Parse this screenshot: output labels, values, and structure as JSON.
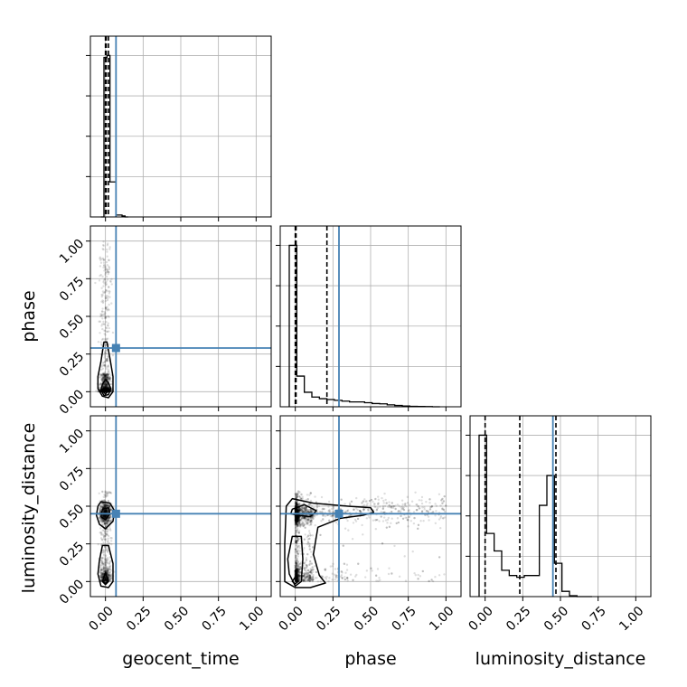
{
  "chart_data": {
    "type": "corner",
    "parameters": [
      "geocent_time",
      "phase",
      "luminosity_distance"
    ],
    "axis_labels": {
      "x": [
        "geocent_time",
        "phase",
        "luminosity_distance"
      ],
      "y": [
        "phase",
        "luminosity_distance"
      ]
    },
    "range": [
      -0.1,
      1.1
    ],
    "ticks": [
      0.0,
      0.25,
      0.5,
      0.75,
      1.0
    ],
    "tick_labels": [
      "0.00",
      "0.25",
      "0.50",
      "0.75",
      "1.00"
    ],
    "grid": true,
    "truths": [
      0.07,
      0.29,
      0.45
    ],
    "truth_color": "#4682b4",
    "hist_color": "#000000",
    "histograms": [
      {
        "parameter": "geocent_time",
        "bin_edges": [
          -0.03,
          -0.01,
          0.01,
          0.03,
          0.05,
          0.07,
          0.09,
          0.11,
          0.13,
          0.15
        ],
        "counts": [
          0.0,
          0.82,
          0.83,
          0.18,
          0.18,
          0.01,
          0.01,
          0.005,
          0.0
        ],
        "quantiles": [
          0.0,
          0.005,
          0.02
        ]
      },
      {
        "parameter": "phase",
        "bin_edges": [
          -0.04,
          0.01,
          0.06,
          0.11,
          0.16,
          0.21,
          0.26,
          0.31,
          0.36,
          0.41,
          0.46,
          0.51,
          0.56,
          0.61,
          0.66,
          0.71,
          0.76,
          0.81,
          0.86,
          0.91,
          0.96
        ],
        "counts": [
          1.0,
          0.19,
          0.09,
          0.06,
          0.05,
          0.045,
          0.04,
          0.035,
          0.03,
          0.03,
          0.025,
          0.02,
          0.018,
          0.012,
          0.008,
          0.005,
          0.003,
          0.002,
          0.001,
          0.0
        ],
        "quantiles": [
          0.0,
          0.005,
          0.21
        ]
      },
      {
        "parameter": "luminosity_distance",
        "bin_edges": [
          -0.04,
          0.01,
          0.06,
          0.11,
          0.16,
          0.21,
          0.26,
          0.31,
          0.36,
          0.41,
          0.46,
          0.51,
          0.56,
          0.61,
          0.66,
          0.71
        ],
        "counts": [
          0.92,
          0.36,
          0.26,
          0.15,
          0.12,
          0.11,
          0.12,
          0.12,
          0.52,
          0.69,
          0.19,
          0.03,
          0.005,
          0.0,
          0.0
        ],
        "quantiles": [
          0.0,
          0.23,
          0.47
        ]
      }
    ],
    "scatter_panels": [
      {
        "x_parameter": "geocent_time",
        "y_parameter": "phase",
        "sample_count": 1200,
        "density_contours": [
          [
            [
              -0.05,
              0.02
            ],
            [
              -0.02,
              -0.03
            ],
            [
              0.02,
              -0.04
            ],
            [
              0.05,
              0.0
            ],
            [
              0.05,
              0.1
            ],
            [
              0.03,
              0.22
            ],
            [
              0.01,
              0.33
            ],
            [
              -0.01,
              0.33
            ],
            [
              -0.03,
              0.2
            ],
            [
              -0.05,
              0.1
            ]
          ],
          [
            [
              -0.03,
              0.01
            ],
            [
              -0.01,
              -0.025
            ],
            [
              0.02,
              -0.02
            ],
            [
              0.035,
              0.02
            ],
            [
              0.02,
              0.06
            ],
            [
              0.0,
              0.08
            ],
            [
              -0.02,
              0.05
            ]
          ],
          [
            [
              -0.015,
              0.0
            ],
            [
              0.0,
              -0.015
            ],
            [
              0.015,
              0.0
            ],
            [
              0.0,
              0.015
            ]
          ]
        ],
        "truth_point": [
          0.07,
          0.29
        ]
      },
      {
        "x_parameter": "geocent_time",
        "y_parameter": "luminosity_distance",
        "sample_count": 1200,
        "density_contours": [
          [
            [
              -0.05,
              0.5
            ],
            [
              -0.03,
              0.53
            ],
            [
              0.03,
              0.52
            ],
            [
              0.06,
              0.47
            ],
            [
              0.05,
              0.4
            ],
            [
              0.0,
              0.35
            ],
            [
              -0.04,
              0.38
            ],
            [
              -0.06,
              0.44
            ]
          ],
          [
            [
              -0.02,
              0.48
            ],
            [
              0.02,
              0.49
            ],
            [
              0.03,
              0.45
            ],
            [
              0.0,
              0.41
            ],
            [
              -0.03,
              0.43
            ]
          ],
          [
            [
              -0.05,
              0.05
            ],
            [
              -0.03,
              -0.03
            ],
            [
              0.02,
              -0.04
            ],
            [
              0.05,
              0.0
            ],
            [
              0.05,
              0.12
            ],
            [
              0.02,
              0.24
            ],
            [
              -0.02,
              0.24
            ],
            [
              -0.04,
              0.14
            ]
          ],
          [
            [
              -0.02,
              0.0
            ],
            [
              0.0,
              -0.02
            ],
            [
              0.02,
              0.0
            ],
            [
              0.0,
              0.06
            ]
          ],
          [
            [
              -0.015,
              0.0
            ],
            [
              0.0,
              -0.012
            ],
            [
              0.015,
              0.0
            ],
            [
              0.0,
              0.012
            ]
          ]
        ],
        "truth_point": [
          0.07,
          0.45
        ]
      },
      {
        "x_parameter": "phase",
        "y_parameter": "luminosity_distance",
        "sample_count": 2500,
        "density_contours": [
          [
            [
              -0.06,
              0.5
            ],
            [
              -0.02,
              0.55
            ],
            [
              0.12,
              0.52
            ],
            [
              0.35,
              0.5
            ],
            [
              0.5,
              0.49
            ],
            [
              0.52,
              0.46
            ],
            [
              0.45,
              0.44
            ],
            [
              0.3,
              0.42
            ],
            [
              0.15,
              0.36
            ],
            [
              0.12,
              0.18
            ],
            [
              0.16,
              0.04
            ],
            [
              0.2,
              -0.01
            ],
            [
              0.1,
              -0.04
            ],
            [
              0.0,
              -0.04
            ],
            [
              -0.07,
              0.0
            ],
            [
              -0.07,
              0.25
            ]
          ],
          [
            [
              -0.02,
              0.48
            ],
            [
              0.06,
              0.51
            ],
            [
              0.14,
              0.47
            ],
            [
              0.1,
              0.43
            ],
            [
              0.02,
              0.44
            ],
            [
              -0.03,
              0.45
            ]
          ],
          [
            [
              -0.04,
              0.05
            ],
            [
              0.0,
              -0.03
            ],
            [
              0.04,
              0.0
            ],
            [
              0.05,
              0.15
            ],
            [
              0.04,
              0.3
            ],
            [
              -0.02,
              0.3
            ],
            [
              -0.05,
              0.15
            ]
          ],
          [
            [
              -0.02,
              0.0
            ],
            [
              0.0,
              -0.015
            ],
            [
              0.02,
              0.0
            ],
            [
              0.0,
              0.03
            ]
          ]
        ],
        "truth_point": [
          0.29,
          0.45
        ]
      }
    ]
  }
}
